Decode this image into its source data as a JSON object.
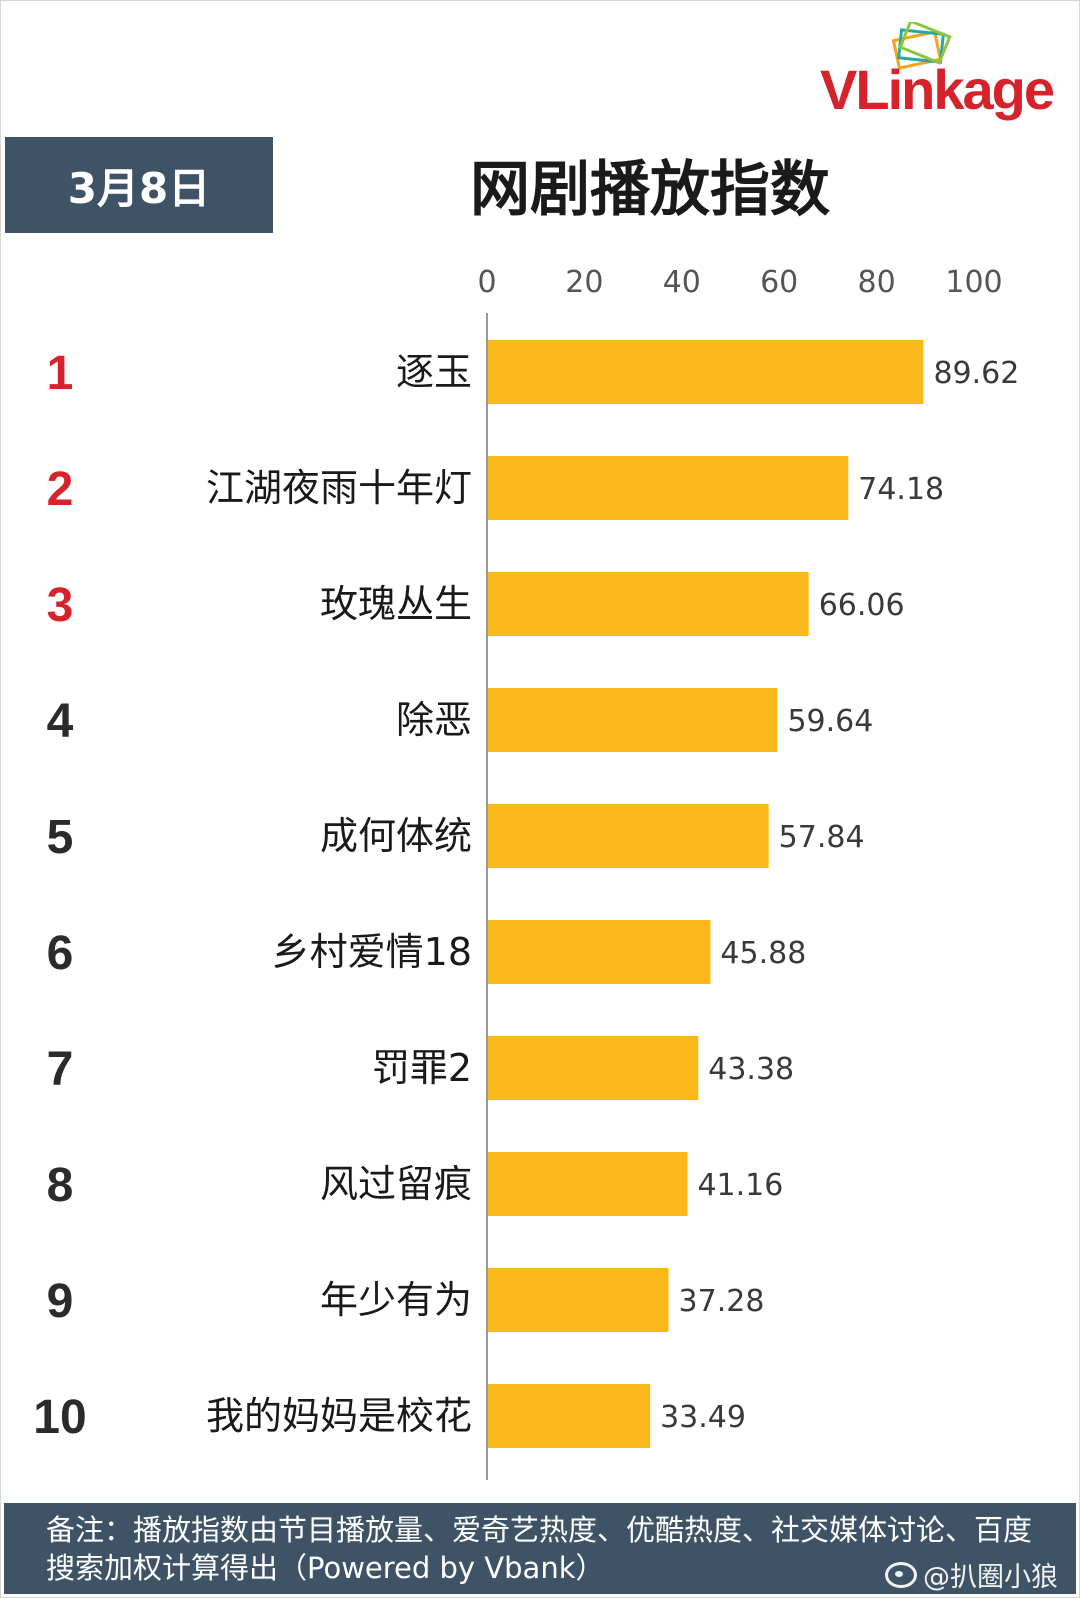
{
  "brand": {
    "logo_v": "V",
    "logo_rest": "Linkage"
  },
  "header": {
    "date": "3月8日",
    "title": "网剧播放指数"
  },
  "chart_data": {
    "type": "bar",
    "orientation": "horizontal",
    "xlim": [
      0,
      100
    ],
    "x_ticks": [
      0,
      20,
      40,
      60,
      80,
      100
    ],
    "ranks": [
      "1",
      "2",
      "3",
      "4",
      "5",
      "6",
      "7",
      "8",
      "9",
      "10"
    ],
    "categories": [
      "逐玉",
      "江湖夜雨十年灯",
      "玫瑰丛生",
      "除恶",
      "成何体统",
      "乡村爱情18",
      "罚罪2",
      "风过留痕",
      "年少有为",
      "我的妈妈是校花"
    ],
    "values": [
      89.62,
      74.18,
      66.06,
      59.64,
      57.84,
      45.88,
      43.38,
      41.16,
      37.28,
      33.49
    ],
    "value_labels": [
      "89.62",
      "74.18",
      "66.06",
      "59.64",
      "57.84",
      "45.88",
      "43.38",
      "41.16",
      "37.28",
      "33.49"
    ],
    "bar_color": "#fbb81b",
    "top_rank_color": "#d6232b",
    "rank_color": "#2b2b2b"
  },
  "footer": {
    "note": "备注：播放指数由节目播放量、爱奇艺热度、优酷热度、社交媒体讨论、百度搜索加权计算得出（Powered by Vbank）",
    "watermark": "@扒圈小狼"
  }
}
